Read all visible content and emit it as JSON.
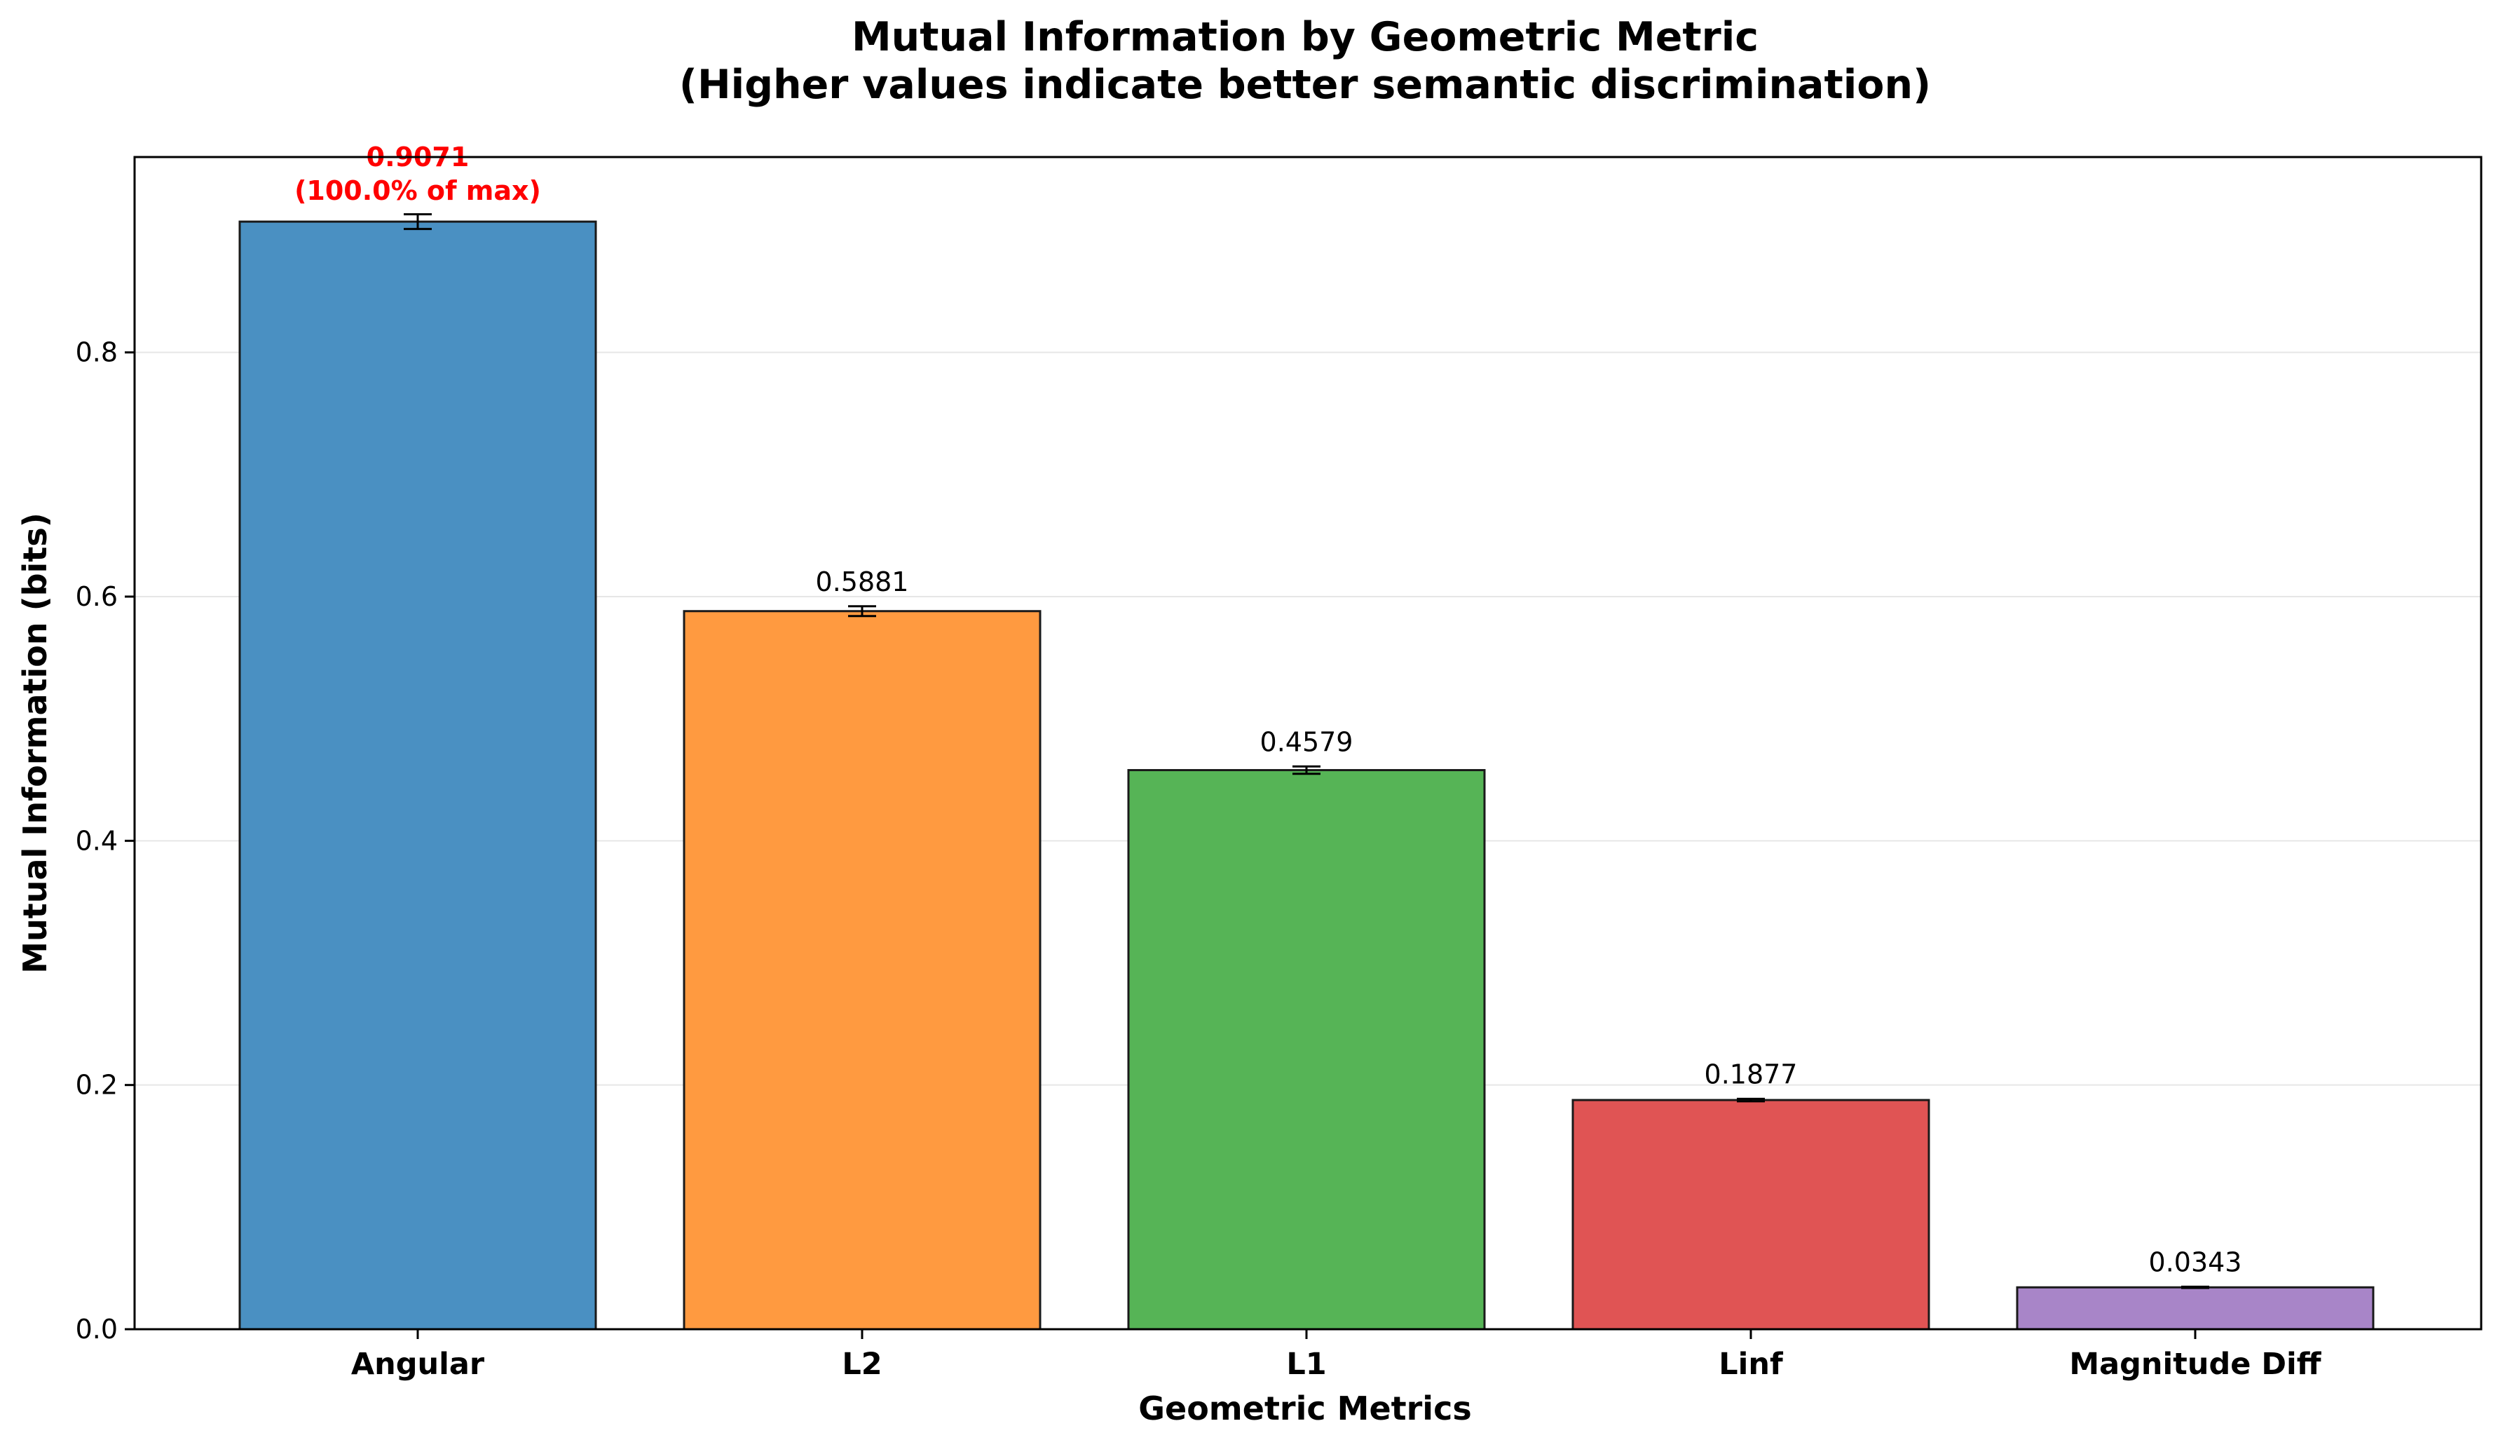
{
  "chart_data": {
    "type": "bar",
    "title": "Mutual Information by Geometric Metric",
    "subtitle": "(Higher values indicate better semantic discrimination)",
    "xlabel": "Geometric Metrics",
    "ylabel": "Mutual Information (bits)",
    "categories": [
      "Angular",
      "L2",
      "L1",
      "Linf",
      "Magnitude Diff"
    ],
    "values": [
      0.9071,
      0.5881,
      0.4579,
      0.1877,
      0.0343
    ],
    "errors": [
      0.006,
      0.004,
      0.003,
      0.001,
      0.0005
    ],
    "data_labels": [
      "0.9071",
      "0.5881",
      "0.4579",
      "0.1877",
      "0.0343"
    ],
    "max_annotation": "(100.0% of max)",
    "colors": [
      "#4a90c2",
      "#ff9a40",
      "#56b456",
      "#e05454",
      "#a885c8"
    ],
    "highlight_color": "#ff0000",
    "ylim": [
      0,
      0.96
    ],
    "yticks": [
      0.0,
      0.2,
      0.4,
      0.6,
      0.8
    ],
    "ytick_labels": [
      "0.0",
      "0.2",
      "0.4",
      "0.6",
      "0.8"
    ],
    "grid": "y"
  }
}
